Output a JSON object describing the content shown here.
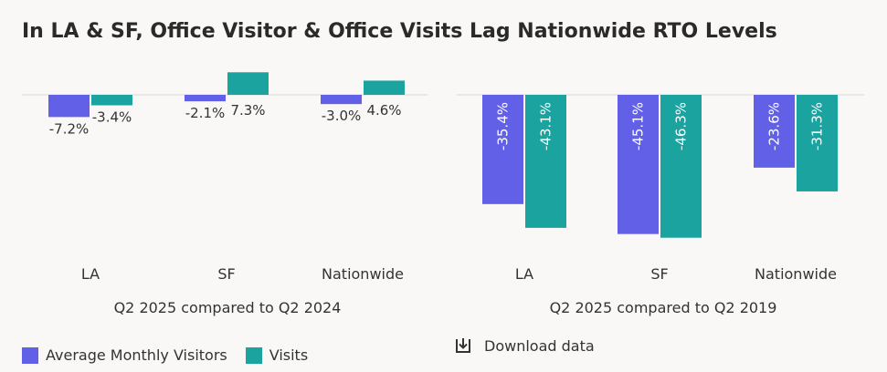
{
  "title": "In LA & SF, Office Visitor & Office Visits Lag Nationwide RTO Levels",
  "colors": {
    "visitors": "#6360e8",
    "visits": "#1aa39f",
    "baseline": "#d9d9d9"
  },
  "legend": {
    "visitors_label": "Average Monthly Visitors",
    "visits_label": "Visits"
  },
  "download": {
    "label": "Download data",
    "icon": "download-icon"
  },
  "chart_data": [
    {
      "type": "bar",
      "title": "",
      "xlabel": "Q2 2025 compared to Q2 2024",
      "categories": [
        "LA",
        "SF",
        "Nationwide"
      ],
      "series": [
        {
          "name": "Average Monthly Visitors",
          "values": [
            -7.2,
            -2.1,
            -3.0
          ],
          "labels": [
            "-7.2%",
            "-2.1%",
            "-3.0%"
          ]
        },
        {
          "name": "Visits",
          "values": [
            -3.4,
            7.3,
            4.6
          ],
          "labels": [
            "-3.4%",
            "7.3%",
            "4.6%"
          ]
        }
      ],
      "label_orientation": "horizontal"
    },
    {
      "type": "bar",
      "title": "",
      "xlabel": "Q2 2025 compared to Q2 2019",
      "categories": [
        "LA",
        "SF",
        "Nationwide"
      ],
      "series": [
        {
          "name": "Average Monthly Visitors",
          "values": [
            -35.4,
            -45.1,
            -23.6
          ],
          "labels": [
            "-35.4%",
            "-45.1%",
            "-23.6%"
          ]
        },
        {
          "name": "Visits",
          "values": [
            -43.1,
            -46.3,
            -31.3
          ],
          "labels": [
            "-43.1%",
            "-46.3%",
            "-31.3%"
          ]
        }
      ],
      "label_orientation": "vertical"
    }
  ]
}
